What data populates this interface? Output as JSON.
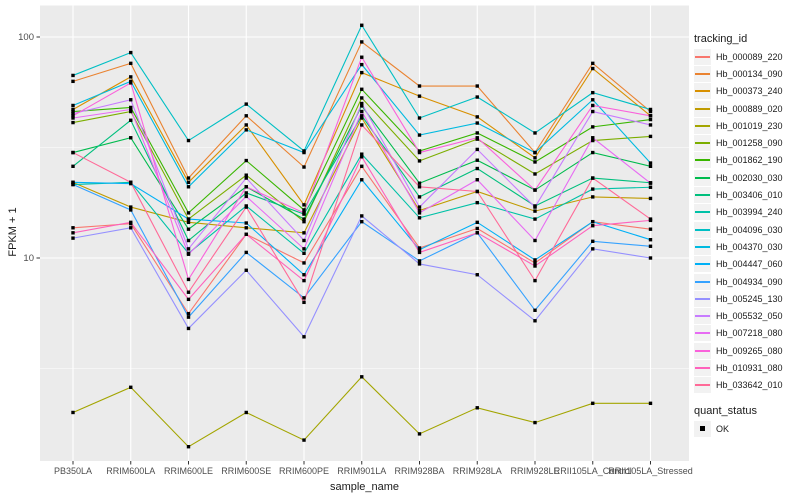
{
  "figure": {
    "background": "#FFFFFF",
    "panel_background": "#EBEBEB",
    "grid_color": "#FFFFFF",
    "tick_label_color": "#4D4D4D",
    "axis_title_color": "#1a1a1a",
    "point_color": "#000000",
    "legend_key_fill": "#F2F2F2"
  },
  "chart_data": {
    "type": "line",
    "title": "",
    "xlabel": "sample_name",
    "ylabel": "FPKM + 1",
    "y_scale": "log10",
    "y_ticks": [
      10,
      100
    ],
    "y_tick_labels": [
      "10",
      "100"
    ],
    "y_minor_breaks": [
      3.1623,
      31.6228
    ],
    "ylim": [
      1.21,
      138
    ],
    "grid": true,
    "legend_position": "right",
    "legend_title": "tracking_id",
    "point_marker": "square",
    "x_categories": [
      "PB350LA",
      "RRIM600LA",
      "RRIM600LE",
      "RRIM600SE",
      "RRIM600PE",
      "RRIM901LA",
      "RRIM928BA",
      "RRIM928LA",
      "RRIM928LE",
      "RRII105LA_Control",
      "RRII105LA_Stressed"
    ],
    "series": [
      {
        "name": "Hb_000089_220",
        "color": "#F8766D",
        "values": [
          13.7,
          14.3,
          5.6,
          12.8,
          9.5,
          26.0,
          11.1,
          13.6,
          9.5,
          14.6,
          13.5
        ]
      },
      {
        "name": "Hb_000134_090",
        "color": "#EA8331",
        "values": [
          63,
          76,
          23,
          44,
          25.8,
          95,
          60,
          60,
          30,
          76,
          46
        ]
      },
      {
        "name": "Hb_000373_240",
        "color": "#D89000",
        "values": [
          47,
          66,
          22,
          40,
          17.4,
          69,
          54,
          43.5,
          28.4,
          72,
          44
        ]
      },
      {
        "name": "Hb_000889_020",
        "color": "#C09B00",
        "values": [
          22,
          17,
          14.5,
          13.7,
          13,
          43,
          16.4,
          20,
          16.3,
          18.9,
          18.6
        ]
      },
      {
        "name": "Hb_001019_230",
        "color": "#A3A500",
        "values": [
          2.0,
          2.6,
          1.4,
          2.0,
          1.5,
          2.9,
          1.6,
          2.1,
          1.8,
          2.2,
          2.2
        ]
      },
      {
        "name": "Hb_001258_090",
        "color": "#7CAE00",
        "values": [
          41,
          46,
          15,
          23.7,
          14.6,
          53,
          27.5,
          34.5,
          24,
          34,
          35.5
        ]
      },
      {
        "name": "Hb_001862_190",
        "color": "#39B600",
        "values": [
          46,
          48,
          16,
          27.6,
          16.5,
          58,
          30.5,
          36.8,
          27.2,
          39.2,
          42.3
        ]
      },
      {
        "name": "Hb_002030_030",
        "color": "#00BB4E",
        "values": [
          30,
          35,
          13.5,
          21,
          15,
          48.8,
          21.8,
          27.7,
          20.3,
          30,
          26
        ]
      },
      {
        "name": "Hb_003406_010",
        "color": "#00BF7D",
        "values": [
          26,
          42,
          12,
          19.7,
          15.8,
          44,
          18.9,
          25.4,
          17.2,
          23,
          21.9
        ]
      },
      {
        "name": "Hb_003994_240",
        "color": "#00C1A7",
        "values": [
          21.5,
          22,
          10.5,
          17.2,
          10.5,
          29.5,
          15.2,
          17.8,
          15,
          20.5,
          20.9
        ]
      },
      {
        "name": "Hb_004096_030",
        "color": "#00BFC4",
        "values": [
          67,
          85,
          34,
          49.7,
          30.5,
          113,
          43,
          53.5,
          36.8,
          56,
          47
        ]
      },
      {
        "name": "Hb_004370_030",
        "color": "#00BAE0",
        "values": [
          49,
          63,
          21,
          38,
          30,
          75,
          36,
          40.8,
          30,
          52,
          26.9
        ]
      },
      {
        "name": "Hb_004447_060",
        "color": "#00B0F6",
        "values": [
          22,
          21.7,
          15,
          14.4,
          8.4,
          22.6,
          10.9,
          14.5,
          9.8,
          14.6,
          12.1
        ]
      },
      {
        "name": "Hb_004934_090",
        "color": "#35A2FF",
        "values": [
          21.5,
          16.5,
          5.4,
          10.6,
          6.6,
          14.6,
          9.7,
          13.0,
          5.8,
          11.9,
          11.3
        ]
      },
      {
        "name": "Hb_005245_130",
        "color": "#9590FF",
        "values": [
          12.3,
          13.7,
          4.8,
          8.8,
          4.4,
          15.5,
          9.4,
          8.4,
          5.2,
          11.0,
          10.0
        ]
      },
      {
        "name": "Hb_005532_050",
        "color": "#C77CFF",
        "values": [
          45,
          52,
          11,
          23,
          12,
          50,
          17,
          31,
          17,
          46,
          40
        ]
      },
      {
        "name": "Hb_007218_080",
        "color": "#E76BF3",
        "values": [
          43,
          47,
          10.4,
          19,
          11,
          46,
          16,
          22.6,
          12,
          35,
          21.8
        ]
      },
      {
        "name": "Hb_009265_080",
        "color": "#FA62DB",
        "values": [
          44,
          62,
          8,
          21,
          16,
          81,
          30,
          35,
          20.3,
          49,
          44
        ]
      },
      {
        "name": "Hb_010931_080",
        "color": "#FF62BC",
        "values": [
          13,
          14.5,
          6.5,
          12.8,
          7.9,
          28.7,
          10.6,
          13.0,
          9.2,
          14,
          14.8
        ]
      },
      {
        "name": "Hb_033642_010",
        "color": "#FF6A98",
        "values": [
          30,
          22,
          7,
          17,
          6.3,
          40,
          21,
          20,
          7.9,
          23,
          15.0
        ]
      }
    ],
    "legend2": {
      "title": "quant_status",
      "items": [
        {
          "label": "OK",
          "marker": "square",
          "color": "#000000"
        }
      ]
    }
  }
}
